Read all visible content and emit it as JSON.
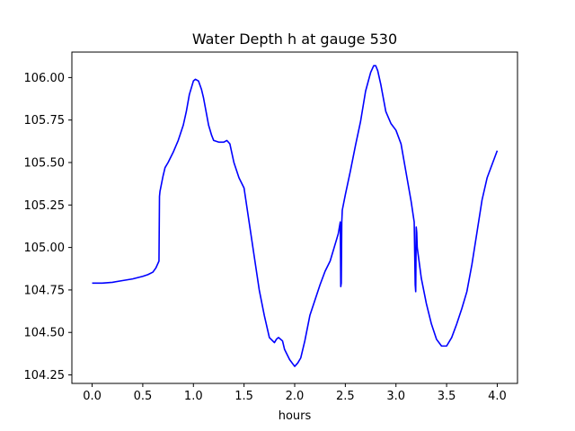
{
  "chart_data": {
    "type": "line",
    "title": "Water Depth h at gauge 530",
    "xlabel": "hours",
    "ylabel": "",
    "xlim": [
      -0.2,
      4.2
    ],
    "ylim": [
      104.2,
      106.15
    ],
    "xticks": [
      0.0,
      0.5,
      1.0,
      1.5,
      2.0,
      2.5,
      3.0,
      3.5,
      4.0
    ],
    "xtick_labels": [
      "0.0",
      "0.5",
      "1.0",
      "1.5",
      "2.0",
      "2.5",
      "3.0",
      "3.5",
      "4.0"
    ],
    "yticks": [
      104.25,
      104.5,
      104.75,
      105.0,
      105.25,
      105.5,
      105.75,
      106.0
    ],
    "ytick_labels": [
      "104.25",
      "104.50",
      "104.75",
      "105.00",
      "105.25",
      "105.50",
      "105.75",
      "106.00"
    ],
    "grid": false,
    "series": [
      {
        "color": "#0000ff",
        "x": [
          0.0,
          0.1,
          0.2,
          0.3,
          0.4,
          0.5,
          0.55,
          0.6,
          0.63,
          0.66,
          0.665,
          0.67,
          0.7,
          0.72,
          0.75,
          0.8,
          0.85,
          0.9,
          0.93,
          0.96,
          1.0,
          1.02,
          1.05,
          1.08,
          1.1,
          1.15,
          1.18,
          1.2,
          1.25,
          1.3,
          1.33,
          1.36,
          1.4,
          1.45,
          1.5,
          1.55,
          1.6,
          1.65,
          1.7,
          1.75,
          1.8,
          1.82,
          1.84,
          1.86,
          1.88,
          1.9,
          1.95,
          2.0,
          2.03,
          2.06,
          2.1,
          2.15,
          2.2,
          2.25,
          2.3,
          2.35,
          2.4,
          2.43,
          2.45,
          2.455,
          2.46,
          2.465,
          2.47,
          2.5,
          2.55,
          2.6,
          2.65,
          2.7,
          2.75,
          2.78,
          2.8,
          2.82,
          2.85,
          2.9,
          2.95,
          3.0,
          3.05,
          3.1,
          3.15,
          3.18,
          3.19,
          3.195,
          3.2,
          3.205,
          3.21,
          3.25,
          3.3,
          3.35,
          3.4,
          3.45,
          3.5,
          3.55,
          3.6,
          3.65,
          3.7,
          3.75,
          3.8,
          3.85,
          3.9,
          3.95,
          4.0
        ],
        "y": [
          104.79,
          104.79,
          104.795,
          104.805,
          104.815,
          104.83,
          104.84,
          104.855,
          104.88,
          104.92,
          105.3,
          105.33,
          105.42,
          105.47,
          105.5,
          105.56,
          105.63,
          105.72,
          105.8,
          105.9,
          105.98,
          105.99,
          105.98,
          105.93,
          105.88,
          105.72,
          105.66,
          105.63,
          105.62,
          105.62,
          105.63,
          105.61,
          105.5,
          105.41,
          105.35,
          105.15,
          104.95,
          104.75,
          104.6,
          104.47,
          104.44,
          104.46,
          104.47,
          104.46,
          104.45,
          104.4,
          104.34,
          104.3,
          104.32,
          104.35,
          104.45,
          104.6,
          104.69,
          104.78,
          104.86,
          104.92,
          105.02,
          105.08,
          105.15,
          104.77,
          104.79,
          105.15,
          105.22,
          105.31,
          105.45,
          105.6,
          105.74,
          105.92,
          106.03,
          106.07,
          106.07,
          106.04,
          105.96,
          105.8,
          105.73,
          105.69,
          105.61,
          105.44,
          105.27,
          105.15,
          104.78,
          104.74,
          105.12,
          105.09,
          105.0,
          104.82,
          104.67,
          104.55,
          104.46,
          104.42,
          104.42,
          104.47,
          104.55,
          104.64,
          104.74,
          104.9,
          105.09,
          105.28,
          105.41,
          105.49,
          105.57
        ]
      }
    ]
  }
}
